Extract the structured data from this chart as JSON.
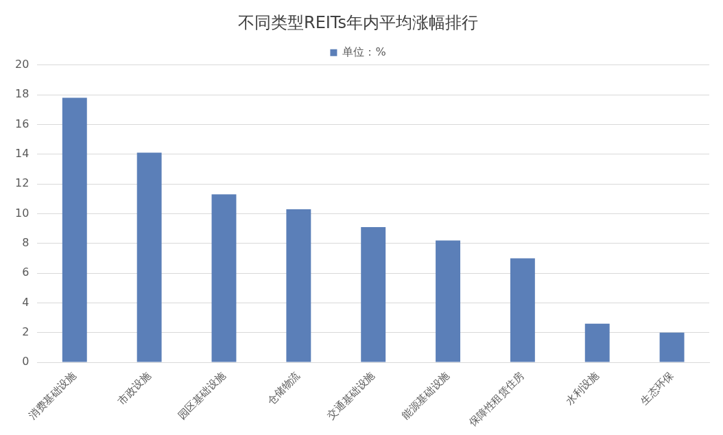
{
  "chart_data": {
    "type": "bar",
    "title": "不同类型REITs年内平均涨幅排行",
    "categories": [
      "消费基础设施",
      "市政设施",
      "园区基础设施",
      "仓储物流",
      "交通基础设施",
      "能源基础设施",
      "保障性租赁住房",
      "水利设施",
      "生态环保"
    ],
    "series": [
      {
        "name": "单位：%",
        "color": "#5b7fb8",
        "values": [
          17.8,
          14.1,
          11.3,
          10.3,
          9.1,
          8.2,
          7.0,
          2.6,
          2.0
        ]
      }
    ],
    "ylim": [
      0,
      20
    ],
    "yticks": [
      0,
      2,
      4,
      6,
      8,
      10,
      12,
      14,
      16,
      18,
      20
    ],
    "grid": "y",
    "legend": "top"
  }
}
